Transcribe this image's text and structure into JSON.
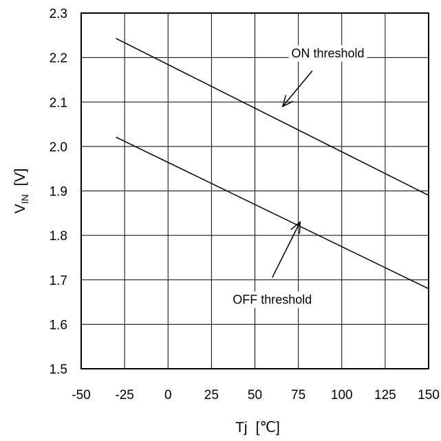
{
  "chart_data": {
    "type": "line",
    "title": "",
    "xlabel": {
      "main": "Tj",
      "unit": "[℃]"
    },
    "ylabel": {
      "main": "V",
      "sub": "IN",
      "unit": "[V]"
    },
    "xlim": [
      -50,
      150
    ],
    "ylim": [
      1.5,
      2.3
    ],
    "grid": true,
    "x_ticks": [
      -50,
      -25,
      0,
      25,
      50,
      75,
      100,
      125,
      150
    ],
    "x_tick_labels": [
      "-50",
      "-25",
      "0",
      "25",
      "50",
      "75",
      "100",
      "125",
      "150"
    ],
    "y_ticks": [
      1.5,
      1.6,
      1.7,
      1.8,
      1.9,
      2.0,
      2.1,
      2.2,
      2.3
    ],
    "y_tick_labels": [
      "1.5",
      "1.6",
      "1.7",
      "1.8",
      "1.9",
      "2.0",
      "2.1",
      "2.2",
      "2.3"
    ],
    "series": [
      {
        "id": "on",
        "x": [
          -30,
          150
        ],
        "y": [
          2.243,
          1.89
        ]
      },
      {
        "id": "off",
        "x": [
          -30,
          150
        ],
        "y": [
          2.021,
          1.68
        ]
      }
    ],
    "annotations": [
      {
        "id": "on",
        "text": "ON threshold",
        "x": 92,
        "y": 2.2,
        "arrow_from": [
          83,
          2.17
        ],
        "arrow_to": [
          66,
          2.09
        ]
      },
      {
        "id": "off",
        "text": "OFF threshold",
        "x": 60,
        "y": 1.646,
        "arrow_from": [
          60,
          1.705
        ],
        "arrow_to": [
          76,
          1.83
        ]
      }
    ]
  }
}
